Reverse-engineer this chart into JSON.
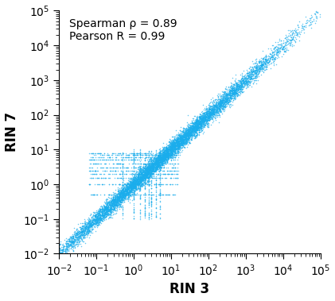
{
  "xlabel": "RIN 3",
  "ylabel": "RIN 7",
  "xlim": [
    0.01,
    100000
  ],
  "ylim": [
    0.01,
    100000
  ],
  "annotation_line1": "Spearman ρ = 0.89",
  "annotation_line2": "Pearson R = 0.99",
  "point_color": "#1aadec",
  "point_size": 1.2,
  "point_alpha": 0.65,
  "n_points": 10000,
  "seed": 42,
  "xlabel_fontsize": 12,
  "ylabel_fontsize": 12,
  "annotation_fontsize": 10
}
